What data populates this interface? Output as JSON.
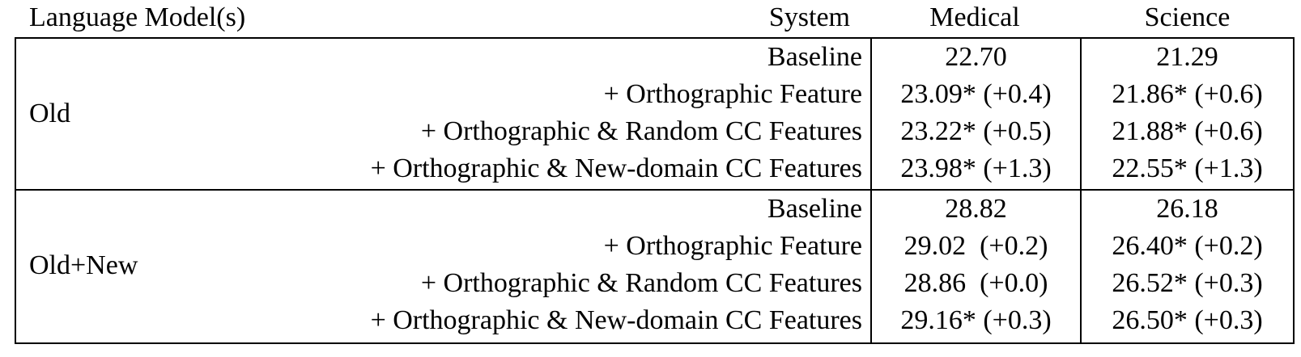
{
  "header": {
    "language_models": "Language Model(s)",
    "system": "System",
    "medical": "Medical",
    "science": "Science"
  },
  "groups": [
    {
      "label": "Old",
      "rows": [
        {
          "system": "Baseline",
          "medical": "22.70",
          "science": "21.29"
        },
        {
          "system": "+ Orthographic Feature",
          "medical": "23.09* (+0.4)",
          "science": "21.86* (+0.6)"
        },
        {
          "system": "+ Orthographic & Random CC Features",
          "medical": "23.22* (+0.5)",
          "science": "21.88* (+0.6)"
        },
        {
          "system": "+ Orthographic & New-domain CC Features",
          "medical": "23.98* (+1.3)",
          "science": "22.55* (+1.3)"
        }
      ]
    },
    {
      "label": "Old+New",
      "rows": [
        {
          "system": "Baseline",
          "medical": "28.82",
          "science": "26.18"
        },
        {
          "system": "+ Orthographic Feature",
          "medical": "29.02  (+0.2)",
          "science": "26.40* (+0.2)"
        },
        {
          "system": "+ Orthographic & Random CC Features",
          "medical": "28.86  (+0.0)",
          "science": "26.52* (+0.3)"
        },
        {
          "system": "+ Orthographic & New-domain CC Features",
          "medical": "29.16* (+0.3)",
          "science": "26.50* (+0.3)"
        }
      ]
    }
  ]
}
